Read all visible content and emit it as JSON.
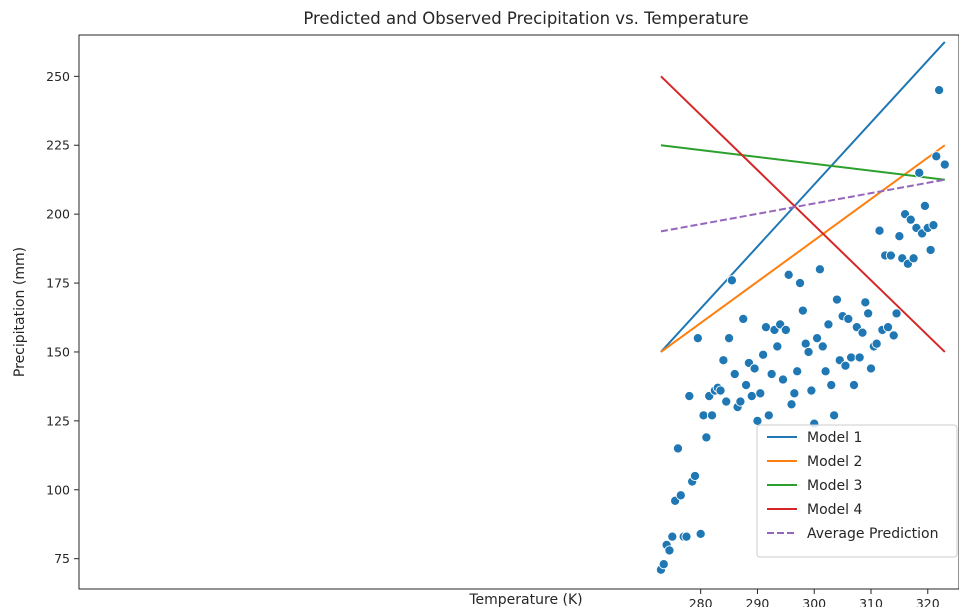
{
  "chart_data": {
    "type": "scatter",
    "title": "Predicted and Observed Precipitation vs. Temperature",
    "xlabel": "Temperature (K)",
    "ylabel": "Precipitation (mm)",
    "xlim": [
      170.5,
      325.5
    ],
    "ylim": [
      64,
      265
    ],
    "xticks": [
      280,
      290,
      300,
      310,
      320
    ],
    "yticks": [
      75,
      100,
      125,
      150,
      175,
      200,
      225,
      250
    ],
    "grid": false,
    "legend_position": "bottom-right",
    "scatter": {
      "color": "#1f77b4",
      "points": [
        [
          273.0,
          71
        ],
        [
          273.5,
          73
        ],
        [
          274.0,
          80
        ],
        [
          274.5,
          78
        ],
        [
          275.0,
          83
        ],
        [
          275.5,
          96
        ],
        [
          276.0,
          115
        ],
        [
          276.5,
          98
        ],
        [
          277.0,
          83
        ],
        [
          277.5,
          83
        ],
        [
          278.0,
          134
        ],
        [
          278.5,
          103
        ],
        [
          279.0,
          105
        ],
        [
          279.5,
          155
        ],
        [
          280.0,
          84
        ],
        [
          280.5,
          127
        ],
        [
          281.0,
          119
        ],
        [
          281.5,
          134
        ],
        [
          282.0,
          127
        ],
        [
          282.5,
          136
        ],
        [
          283.0,
          137
        ],
        [
          283.5,
          136
        ],
        [
          284.0,
          147
        ],
        [
          284.5,
          132
        ],
        [
          285.0,
          155
        ],
        [
          285.5,
          176
        ],
        [
          286.0,
          142
        ],
        [
          286.5,
          130
        ],
        [
          287.0,
          132
        ],
        [
          287.5,
          162
        ],
        [
          288.0,
          138
        ],
        [
          288.5,
          146
        ],
        [
          289.0,
          134
        ],
        [
          289.5,
          144
        ],
        [
          290.0,
          125
        ],
        [
          290.5,
          135
        ],
        [
          291.0,
          149
        ],
        [
          291.5,
          159
        ],
        [
          292.0,
          127
        ],
        [
          292.5,
          142
        ],
        [
          293.0,
          158
        ],
        [
          293.5,
          152
        ],
        [
          294.0,
          160
        ],
        [
          294.5,
          140
        ],
        [
          295.0,
          158
        ],
        [
          295.5,
          178
        ],
        [
          296.0,
          131
        ],
        [
          296.5,
          135
        ],
        [
          297.0,
          143
        ],
        [
          297.5,
          175
        ],
        [
          298.0,
          165
        ],
        [
          298.5,
          153
        ],
        [
          299.0,
          150
        ],
        [
          299.5,
          136
        ],
        [
          300.0,
          124
        ],
        [
          300.5,
          155
        ],
        [
          301.0,
          180
        ],
        [
          301.5,
          152
        ],
        [
          302.0,
          143
        ],
        [
          302.5,
          160
        ],
        [
          303.0,
          138
        ],
        [
          303.5,
          127
        ],
        [
          304.0,
          169
        ],
        [
          304.5,
          147
        ],
        [
          305.0,
          163
        ],
        [
          305.5,
          145
        ],
        [
          306.0,
          162
        ],
        [
          306.5,
          148
        ],
        [
          307.0,
          138
        ],
        [
          307.5,
          159
        ],
        [
          308.0,
          148
        ],
        [
          308.5,
          157
        ],
        [
          309.0,
          168
        ],
        [
          309.5,
          164
        ],
        [
          310.0,
          144
        ],
        [
          310.5,
          152
        ],
        [
          311.0,
          153
        ],
        [
          311.5,
          194
        ],
        [
          312.0,
          158
        ],
        [
          312.5,
          185
        ],
        [
          313.0,
          159
        ],
        [
          313.5,
          185
        ],
        [
          314.0,
          156
        ],
        [
          314.5,
          164
        ],
        [
          315.0,
          192
        ],
        [
          315.5,
          184
        ],
        [
          316.0,
          200
        ],
        [
          316.5,
          182
        ],
        [
          317.0,
          198
        ],
        [
          317.5,
          184
        ],
        [
          318.0,
          195
        ],
        [
          318.5,
          215
        ],
        [
          319.0,
          193
        ],
        [
          319.5,
          203
        ],
        [
          320.0,
          195
        ],
        [
          320.5,
          187
        ],
        [
          321.0,
          196
        ],
        [
          321.5,
          221
        ],
        [
          322.0,
          245
        ],
        [
          323.0,
          218
        ]
      ]
    },
    "series": [
      {
        "name": "Model 1",
        "color": "#1f77b4",
        "dashed": false,
        "x": [
          273,
          323
        ],
        "y": [
          150,
          262.5
        ]
      },
      {
        "name": "Model 2",
        "color": "#ff7f0e",
        "dashed": false,
        "x": [
          273,
          323
        ],
        "y": [
          150,
          225
        ]
      },
      {
        "name": "Model 3",
        "color": "#2ca02c",
        "dashed": false,
        "x": [
          273,
          323
        ],
        "y": [
          225,
          212.5
        ]
      },
      {
        "name": "Model 4",
        "color": "#d62728",
        "dashed": false,
        "x": [
          273,
          323
        ],
        "y": [
          250,
          150
        ]
      },
      {
        "name": "Average Prediction",
        "color": "#9467bd",
        "dashed": true,
        "x": [
          273,
          323
        ],
        "y": [
          193.75,
          212.5
        ]
      }
    ]
  }
}
